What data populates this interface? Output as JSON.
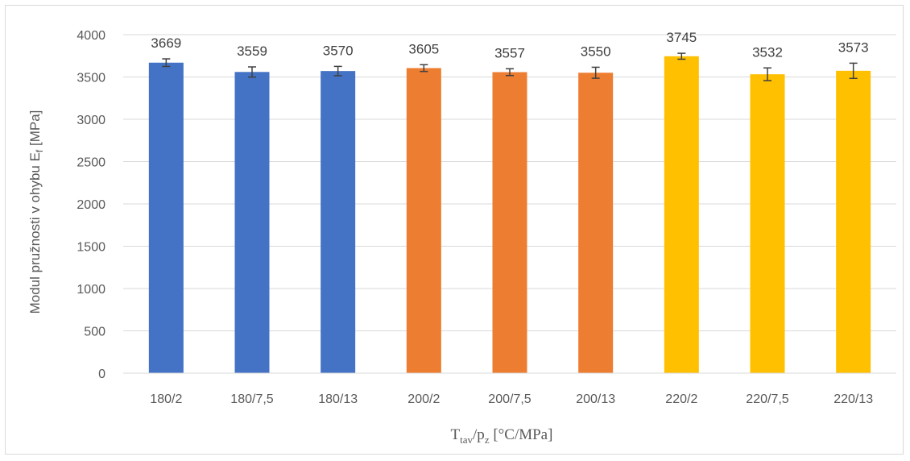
{
  "chart_data": {
    "type": "bar",
    "title": "",
    "categories": [
      "180/2",
      "180/7,5",
      "180/13",
      "200/2",
      "200/7,5",
      "200/13",
      "220/2",
      "220/7,5",
      "220/13"
    ],
    "values": [
      3669,
      3559,
      3570,
      3605,
      3557,
      3550,
      3745,
      3532,
      3573
    ],
    "data_labels": [
      "3669",
      "3559",
      "3570",
      "3605",
      "3557",
      "3550",
      "3745",
      "3532",
      "3573"
    ],
    "errors": [
      45,
      60,
      55,
      40,
      40,
      65,
      35,
      75,
      90
    ],
    "bar_colors": [
      "#4472C4",
      "#4472C4",
      "#4472C4",
      "#ED7D31",
      "#ED7D31",
      "#ED7D31",
      "#FFC000",
      "#FFC000",
      "#FFC000"
    ],
    "error_bar_color": "#404040",
    "ylim": [
      0,
      4000
    ],
    "yticks": [
      0,
      500,
      1000,
      1500,
      2000,
      2500,
      3000,
      3500,
      4000
    ],
    "ytick_labels": [
      "0",
      "500",
      "1000",
      "1500",
      "2000",
      "2500",
      "3000",
      "3500",
      "4000"
    ],
    "ylabel": {
      "main": "Modul pružnosti v ohybu E",
      "sub": "f",
      "suffix": " [MPa]"
    },
    "xlabel": {
      "parts": [
        {
          "text": "T",
          "sub": false
        },
        {
          "text": "tav",
          "sub": true
        },
        {
          "text": "/p",
          "sub": false
        },
        {
          "text": "z",
          "sub": true
        },
        {
          "text": " [°C/MPa]",
          "sub": false
        }
      ]
    },
    "grid": true,
    "grid_color": "#d9d9d9",
    "legend": "none"
  }
}
